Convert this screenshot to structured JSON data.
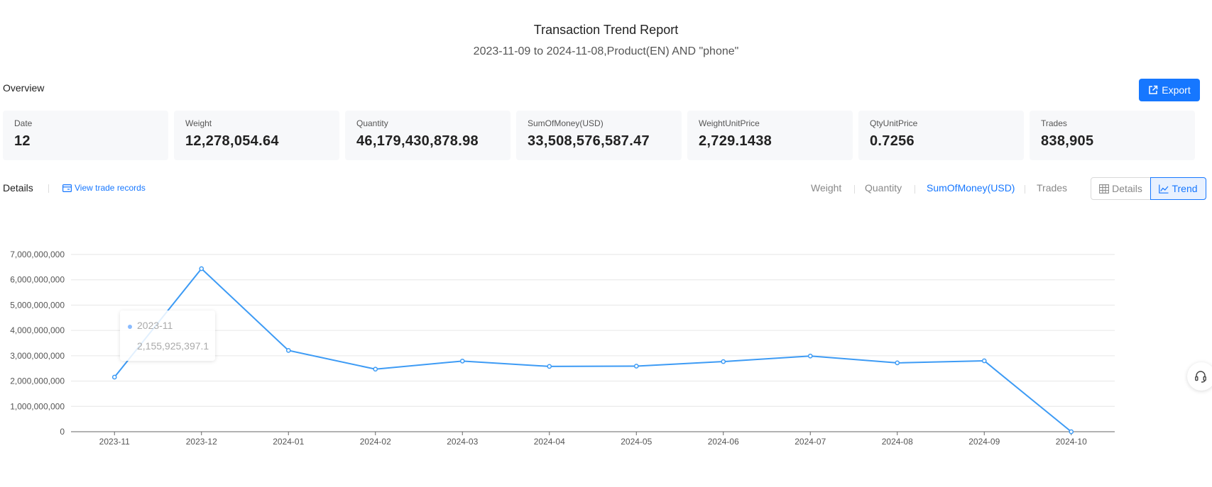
{
  "header": {
    "title": "Transaction Trend Report",
    "subtitle": "2023-11-09 to 2024-11-08,Product(EN) AND \"phone\""
  },
  "overview": {
    "label": "Overview",
    "export_label": "Export",
    "cards": [
      {
        "label": "Date",
        "value": "12"
      },
      {
        "label": "Weight",
        "value": "12,278,054.64"
      },
      {
        "label": "Quantity",
        "value": "46,179,430,878.98"
      },
      {
        "label": "SumOfMoney(USD)",
        "value": "33,508,576,587.47"
      },
      {
        "label": "WeightUnitPrice",
        "value": "2,729.1438"
      },
      {
        "label": "QtyUnitPrice",
        "value": "0.7256"
      },
      {
        "label": "Trades",
        "value": "838,905"
      }
    ]
  },
  "details": {
    "label": "Details",
    "view_records": "View trade records",
    "metric_tabs": [
      "Weight",
      "Quantity",
      "SumOfMoney(USD)",
      "Trades"
    ],
    "active_metric": "SumOfMoney(USD)",
    "view_toggle": {
      "details": "Details",
      "trend": "Trend",
      "active": "Trend"
    }
  },
  "tooltip": {
    "x": "2023-11",
    "y": "2,155,925,397.1"
  },
  "colors": {
    "accent": "#1677ff",
    "line": "#3d9bf5"
  },
  "chart_data": {
    "type": "line",
    "categories": [
      "2023-11",
      "2023-12",
      "2024-01",
      "2024-02",
      "2024-03",
      "2024-04",
      "2024-05",
      "2024-06",
      "2024-07",
      "2024-08",
      "2024-09",
      "2024-10"
    ],
    "series": [
      {
        "values": [
          2155925397.1,
          6440000000,
          3210000000,
          2470000000,
          2790000000,
          2580000000,
          2590000000,
          2770000000,
          2990000000,
          2720000000,
          2800000000,
          0
        ]
      }
    ],
    "y_ticks": [
      "0",
      "1,000,000,000",
      "2,000,000,000",
      "3,000,000,000",
      "4,000,000,000",
      "5,000,000,000",
      "6,000,000,000",
      "7,000,000,000"
    ],
    "ylim": [
      0,
      7000000000
    ],
    "grid": true
  }
}
